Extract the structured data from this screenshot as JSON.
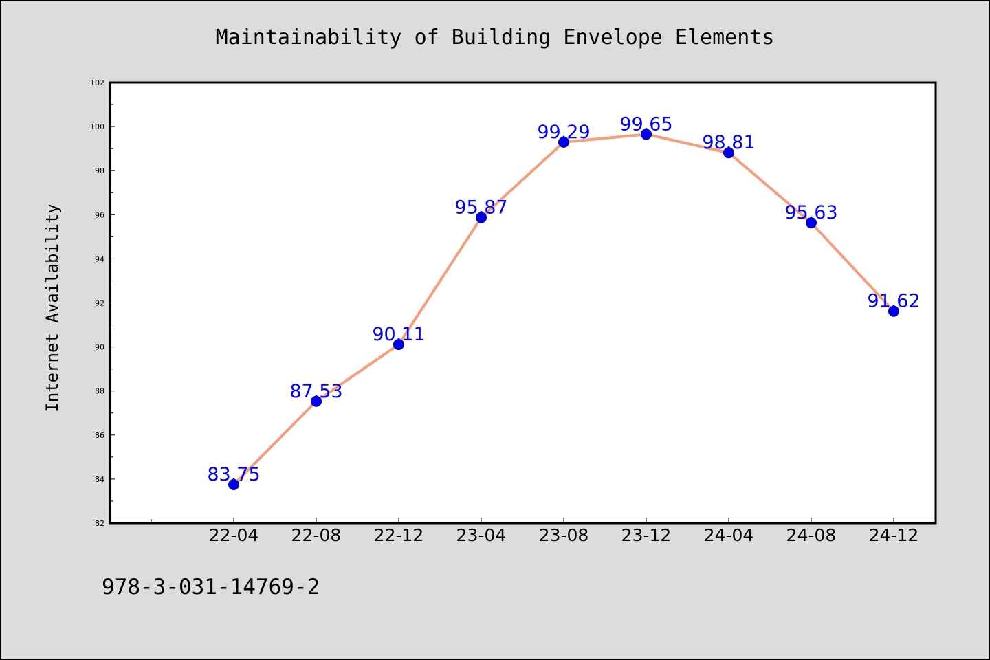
{
  "chart_data": {
    "type": "line",
    "title": "Maintainability of Building Envelope Elements",
    "xlabel": "",
    "ylabel": "Internet Availability",
    "categories": [
      "22-04",
      "22-08",
      "22-12",
      "23-04",
      "23-08",
      "23-12",
      "24-04",
      "24-08",
      "24-12"
    ],
    "values": [
      83.75,
      87.53,
      90.11,
      95.87,
      99.29,
      99.65,
      98.81,
      95.63,
      91.62
    ],
    "value_labels": [
      "83.75",
      "87.53",
      "90.11",
      "95.87",
      "99.29",
      "99.65",
      "98.81",
      "95.63",
      "91.62"
    ],
    "ylim": [
      82,
      102
    ],
    "yticks": [
      82,
      84,
      86,
      88,
      90,
      92,
      94,
      96,
      98,
      100,
      102
    ],
    "grid": false,
    "legend": "none",
    "colors": {
      "line": "#f4a07e",
      "marker": "#0000ee",
      "label": "#0000ff",
      "plot_background": "#ffffff",
      "figure_background": "#dcdcdc"
    }
  },
  "footnote": "978-3-031-14769-2"
}
